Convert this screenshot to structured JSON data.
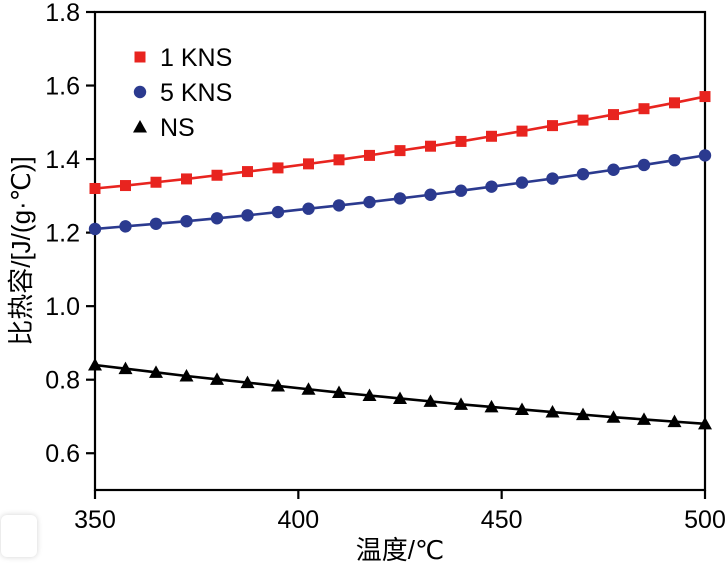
{
  "figure": {
    "background": "#ffffff",
    "frame_color": "#000000"
  },
  "chart_data": {
    "type": "line",
    "title": "",
    "xlabel": "温度/℃",
    "ylabel": "比热容/[J/(g·℃)]",
    "xlim": [
      350,
      500
    ],
    "ylim": [
      0.5,
      1.8
    ],
    "x_ticks": [
      350,
      400,
      450,
      500
    ],
    "y_tick_labels": [
      "0.6",
      "0.8",
      "1.0",
      "1.2",
      "1.4",
      "1.6",
      "1.8"
    ],
    "y_ticks": [
      0.6,
      0.8,
      1.0,
      1.2,
      1.4,
      1.6,
      1.8
    ],
    "grid": false,
    "legend_position": "top-left",
    "x": [
      350,
      357.5,
      365,
      372.5,
      380,
      387.5,
      395,
      402.5,
      410,
      417.5,
      425,
      432.5,
      440,
      447.5,
      455,
      462.5,
      470,
      477.5,
      485,
      492.5,
      500
    ],
    "series": [
      {
        "name": "1 KNS",
        "color": "#e8241f",
        "marker": "square",
        "values": [
          1.32,
          1.328,
          1.337,
          1.346,
          1.356,
          1.366,
          1.376,
          1.387,
          1.398,
          1.41,
          1.423,
          1.435,
          1.448,
          1.462,
          1.476,
          1.491,
          1.506,
          1.521,
          1.537,
          1.553,
          1.57
        ]
      },
      {
        "name": "5 KNS",
        "color": "#2b3a8f",
        "marker": "circle",
        "values": [
          1.21,
          1.217,
          1.224,
          1.231,
          1.239,
          1.247,
          1.256,
          1.265,
          1.274,
          1.283,
          1.293,
          1.303,
          1.314,
          1.325,
          1.336,
          1.347,
          1.359,
          1.371,
          1.384,
          1.397,
          1.41
        ]
      },
      {
        "name": "NS",
        "color": "#000000",
        "marker": "triangle",
        "values": [
          0.84,
          0.83,
          0.82,
          0.81,
          0.801,
          0.792,
          0.783,
          0.774,
          0.765,
          0.757,
          0.749,
          0.741,
          0.733,
          0.726,
          0.719,
          0.712,
          0.705,
          0.698,
          0.692,
          0.686,
          0.68
        ]
      }
    ]
  }
}
